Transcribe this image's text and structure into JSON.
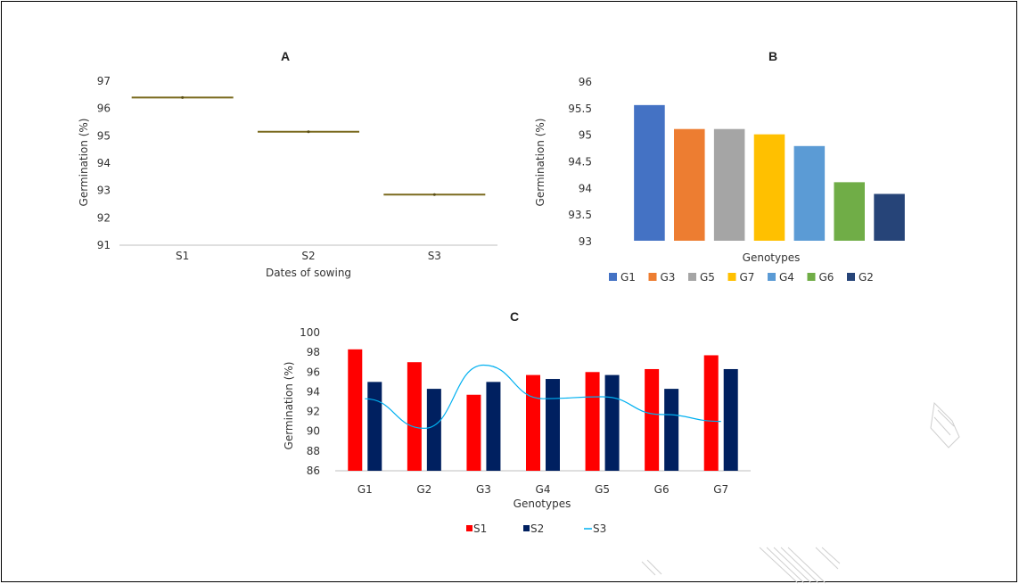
{
  "chart_data": [
    {
      "id": "A",
      "type": "box",
      "title": "A",
      "xlabel": "Dates of sowing",
      "ylabel": "Germination (%)",
      "ylim": [
        91,
        97
      ],
      "yticks": [
        91,
        92,
        93,
        94,
        95,
        96,
        97
      ],
      "categories": [
        "S1",
        "S2",
        "S3"
      ],
      "values": [
        96.4,
        95.15,
        92.85
      ],
      "color": "#7a6a1e"
    },
    {
      "id": "B",
      "type": "bar",
      "title": "B",
      "xlabel": "Genotypes",
      "ylabel": "Germination (%)",
      "ylim": [
        93,
        96
      ],
      "yticks": [
        "93",
        "93.5",
        "94",
        "94.5",
        "95",
        "95.5",
        "96"
      ],
      "categories": [
        "G1",
        "G3",
        "G5",
        "G7",
        "G4",
        "G6",
        "G2"
      ],
      "values": [
        95.55,
        95.1,
        95.1,
        95.0,
        94.78,
        94.1,
        93.88
      ],
      "colors": [
        "#4472c4",
        "#ed7d31",
        "#a5a5a5",
        "#ffc000",
        "#5b9bd5",
        "#70ad47",
        "#264478"
      ],
      "legend_position": "bottom"
    },
    {
      "id": "C",
      "type": "bar+line",
      "title": "C",
      "xlabel": "Genotypes",
      "ylabel": "Germination (%)",
      "ylim": [
        86,
        100
      ],
      "yticks": [
        86,
        88,
        90,
        92,
        94,
        96,
        98,
        100
      ],
      "categories": [
        "G1",
        "G2",
        "G3",
        "G4",
        "G5",
        "G6",
        "G7"
      ],
      "series": [
        {
          "name": "S1",
          "kind": "bar",
          "color": "#ff0000",
          "values": [
            98.3,
            97.0,
            93.7,
            95.7,
            96.0,
            96.3,
            97.7
          ]
        },
        {
          "name": "S2",
          "kind": "bar",
          "color": "#002060",
          "values": [
            95.0,
            94.3,
            95.0,
            95.3,
            95.7,
            94.3,
            96.3
          ]
        },
        {
          "name": "S3",
          "kind": "line",
          "color": "#00b0f0",
          "values": [
            93.3,
            90.3,
            96.7,
            93.3,
            93.5,
            91.7,
            91.0
          ]
        }
      ],
      "legend_position": "bottom"
    }
  ]
}
